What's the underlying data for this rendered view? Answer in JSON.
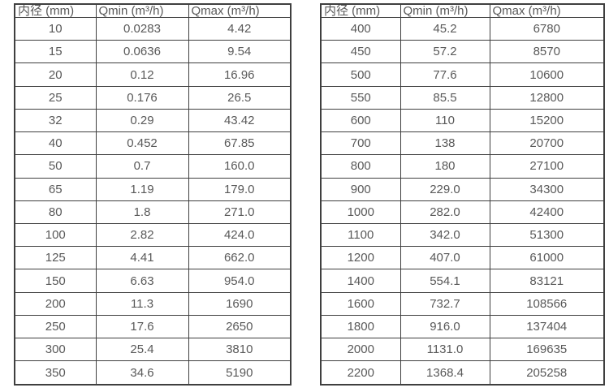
{
  "page": {
    "background_color": "#ffffff",
    "text_color": "#595959",
    "border_color": "#3f3f3f"
  },
  "tables": [
    {
      "name": "flow-rates-small-diameters",
      "headers": [
        "内径 (mm)",
        "Qmin (m³/h)",
        "Qmax (m³/h)"
      ],
      "rows": [
        [
          "10",
          "0.0283",
          "4.42"
        ],
        [
          "15",
          "0.0636",
          "9.54"
        ],
        [
          "20",
          "0.12",
          "16.96"
        ],
        [
          "25",
          "0.176",
          "26.5"
        ],
        [
          "32",
          "0.29",
          "43.42"
        ],
        [
          "40",
          "0.452",
          "67.85"
        ],
        [
          "50",
          "0.7",
          "160.0"
        ],
        [
          "65",
          "1.19",
          "179.0"
        ],
        [
          "80",
          "1.8",
          "271.0"
        ],
        [
          "100",
          "2.82",
          "424.0"
        ],
        [
          "125",
          "4.41",
          "662.0"
        ],
        [
          "150",
          "6.63",
          "954.0"
        ],
        [
          "200",
          "11.3",
          "1690"
        ],
        [
          "250",
          "17.6",
          "2650"
        ],
        [
          "300",
          "25.4",
          "3810"
        ],
        [
          "350",
          "34.6",
          "5190"
        ]
      ]
    },
    {
      "name": "flow-rates-large-diameters",
      "headers": [
        "内径 (mm)",
        "Qmin (m³/h)",
        "Qmax (m³/h)"
      ],
      "rows": [
        [
          "400",
          "45.2",
          "6780"
        ],
        [
          "450",
          "57.2",
          "8570"
        ],
        [
          "500",
          "77.6",
          "10600"
        ],
        [
          "550",
          "85.5",
          "12800"
        ],
        [
          "600",
          "110",
          "15200"
        ],
        [
          "700",
          "138",
          "20700"
        ],
        [
          "800",
          "180",
          "27100"
        ],
        [
          "900",
          "229.0",
          "34300"
        ],
        [
          "1000",
          "282.0",
          "42400"
        ],
        [
          "1100",
          "342.0",
          "51300"
        ],
        [
          "1200",
          "407.0",
          "61000"
        ],
        [
          "1400",
          "554.1",
          "83121"
        ],
        [
          "1600",
          "732.7",
          "108566"
        ],
        [
          "1800",
          "916.0",
          "137404"
        ],
        [
          "2000",
          "1131.0",
          "169635"
        ],
        [
          "2200",
          "1368.4",
          "205258"
        ]
      ]
    }
  ]
}
